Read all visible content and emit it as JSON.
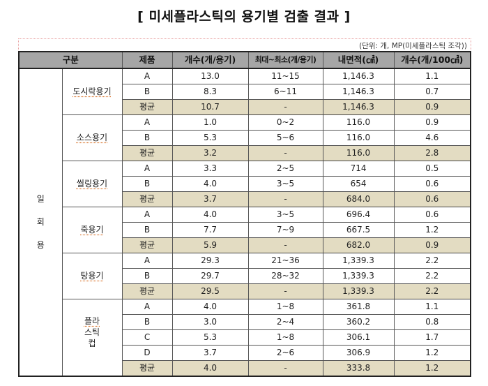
{
  "title": "[ 미세플라스틱의 용기별 검출 결과 ]",
  "unit_note": "(단위: 개, MP(미세플라스틱 조각))",
  "table": {
    "headers": {
      "category": "구분",
      "product": "제품",
      "count_per_container": "개수(개/용기)",
      "max_min": "최대~최소(개/용기)",
      "inner_area": "내면적(㎠)",
      "count_per_100cm2": "개수(개/100㎠)"
    },
    "category_label": "일회용",
    "category_chars": [
      "일",
      "회",
      "용"
    ],
    "groups": [
      {
        "name": "도시락용기",
        "rows": [
          {
            "product": "A",
            "count": "13.0",
            "range": "11~15",
            "area": "1,146.3",
            "per100": "1.1"
          },
          {
            "product": "B",
            "count": "8.3",
            "range": "6~11",
            "area": "1,146.3",
            "per100": "0.7"
          },
          {
            "product": "평균",
            "count": "10.7",
            "range": "-",
            "area": "1,146.3",
            "per100": "0.9",
            "avg": true
          }
        ]
      },
      {
        "name": "소스용기",
        "rows": [
          {
            "product": "A",
            "count": "1.0",
            "range": "0~2",
            "area": "116.0",
            "per100": "0.9"
          },
          {
            "product": "B",
            "count": "5.3",
            "range": "5~6",
            "area": "116.0",
            "per100": "4.6"
          },
          {
            "product": "평균",
            "count": "3.2",
            "range": "-",
            "area": "116.0",
            "per100": "2.8",
            "avg": true
          }
        ]
      },
      {
        "name": "씰링용기",
        "rows": [
          {
            "product": "A",
            "count": "3.3",
            "range": "2~5",
            "area": "714",
            "per100": "0.5"
          },
          {
            "product": "B",
            "count": "4.0",
            "range": "3~5",
            "area": "654",
            "per100": "0.6"
          },
          {
            "product": "평균",
            "count": "3.7",
            "range": "-",
            "area": "684.0",
            "per100": "0.6",
            "avg": true
          }
        ]
      },
      {
        "name": "죽용기",
        "rows": [
          {
            "product": "A",
            "count": "4.0",
            "range": "3~5",
            "area": "696.4",
            "per100": "0.6"
          },
          {
            "product": "B",
            "count": "7.7",
            "range": "7~9",
            "area": "667.5",
            "per100": "1.2"
          },
          {
            "product": "평균",
            "count": "5.9",
            "range": "-",
            "area": "682.0",
            "per100": "0.9",
            "avg": true
          }
        ]
      },
      {
        "name": "탕용기",
        "rows": [
          {
            "product": "A",
            "count": "29.3",
            "range": "21~36",
            "area": "1,339.3",
            "per100": "2.2"
          },
          {
            "product": "B",
            "count": "29.7",
            "range": "28~32",
            "area": "1,339.3",
            "per100": "2.2"
          },
          {
            "product": "평균",
            "count": "29.5",
            "range": "-",
            "area": "1,339.3",
            "per100": "2.2",
            "avg": true
          }
        ]
      },
      {
        "name": "플라스틱컵",
        "name_lines": [
          "플라",
          "스틱",
          "컵"
        ],
        "rows": [
          {
            "product": "A",
            "count": "4.0",
            "range": "1~8",
            "area": "361.8",
            "per100": "1.1"
          },
          {
            "product": "B",
            "count": "3.0",
            "range": "2~4",
            "area": "360.2",
            "per100": "0.8"
          },
          {
            "product": "C",
            "count": "5.3",
            "range": "1~8",
            "area": "306.1",
            "per100": "1.7"
          },
          {
            "product": "D",
            "count": "3.7",
            "range": "2~6",
            "area": "306.9",
            "per100": "1.2"
          },
          {
            "product": "평균",
            "count": "4.0",
            "range": "-",
            "area": "333.8",
            "per100": "1.2",
            "avg": true
          }
        ]
      }
    ]
  },
  "colors": {
    "header_bg": "#a6a6a6",
    "avg_row_bg": "#e3dcc2",
    "border": "#555555"
  }
}
